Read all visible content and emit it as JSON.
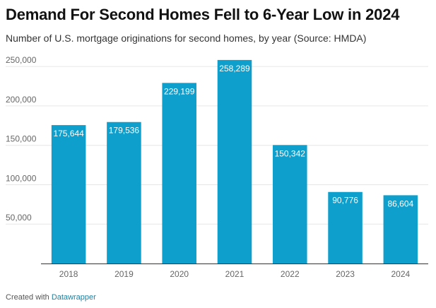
{
  "title": "Demand For Second Homes Fell to 6-Year Low in 2024",
  "subtitle": "Number of U.S. mortgage originations for second homes, by year (Source: HMDA)",
  "footer": {
    "prefix": "Created with ",
    "link": "Datawrapper"
  },
  "colors": {
    "bar": "#0e9fcd",
    "grid": "#e6e6e6",
    "baseline": "#333333"
  },
  "chart_data": {
    "type": "bar",
    "categories": [
      "2018",
      "2019",
      "2020",
      "2021",
      "2022",
      "2023",
      "2024"
    ],
    "values": [
      175644,
      179536,
      229199,
      258289,
      150342,
      90776,
      86604
    ],
    "value_labels": [
      "175,644",
      "179,536",
      "229,199",
      "258,289",
      "150,342",
      "90,776",
      "86,604"
    ],
    "title": "Demand For Second Homes Fell to 6-Year Low in 2024",
    "subtitle": "Number of U.S. mortgage originations for second homes, by year (Source: HMDA)",
    "xlabel": "",
    "ylabel": "",
    "ylim": [
      0,
      260000
    ],
    "yticks": [
      50000,
      100000,
      150000,
      200000,
      250000
    ],
    "ytick_labels": [
      "50,000",
      "100,000",
      "150,000",
      "200,000",
      "250,000"
    ],
    "grid": true,
    "legend": "none"
  }
}
